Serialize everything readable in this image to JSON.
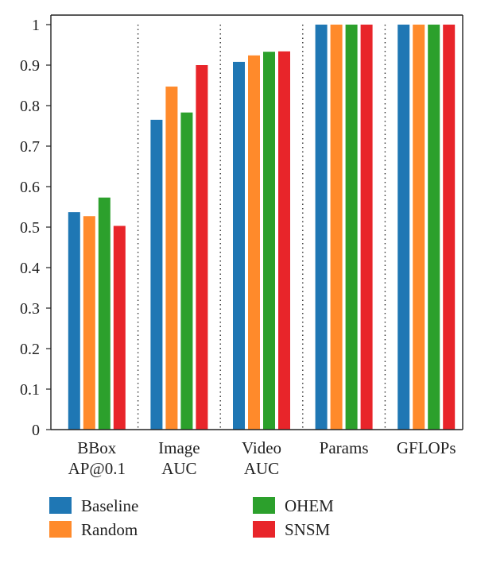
{
  "chart_data": {
    "type": "bar",
    "categories": [
      [
        "BBox",
        "AP@0.1"
      ],
      [
        "Image",
        "AUC"
      ],
      [
        "Video",
        "AUC"
      ],
      [
        "Params"
      ],
      [
        "GFLOPs"
      ]
    ],
    "series": [
      {
        "name": "Baseline",
        "color": "#1f77b4",
        "values": [
          0.537,
          0.765,
          0.908,
          1.0,
          1.0
        ]
      },
      {
        "name": "Random",
        "color": "#ff8a2b",
        "values": [
          0.527,
          0.847,
          0.924,
          1.0,
          1.0
        ]
      },
      {
        "name": "OHEM",
        "color": "#2ca02c",
        "values": [
          0.573,
          0.783,
          0.933,
          1.0,
          1.0
        ]
      },
      {
        "name": "SNSM",
        "color": "#e8252a",
        "values": [
          0.503,
          0.9,
          0.934,
          1.0,
          1.0
        ]
      }
    ],
    "yticks": [
      "0",
      "0.1",
      "0.2",
      "0.3",
      "0.4",
      "0.5",
      "0.6",
      "0.7",
      "0.8",
      "0.9",
      "1"
    ],
    "ylim": [
      0,
      1
    ],
    "grid": "vertical dotted",
    "legend": "bottom-left, 2 columns"
  }
}
